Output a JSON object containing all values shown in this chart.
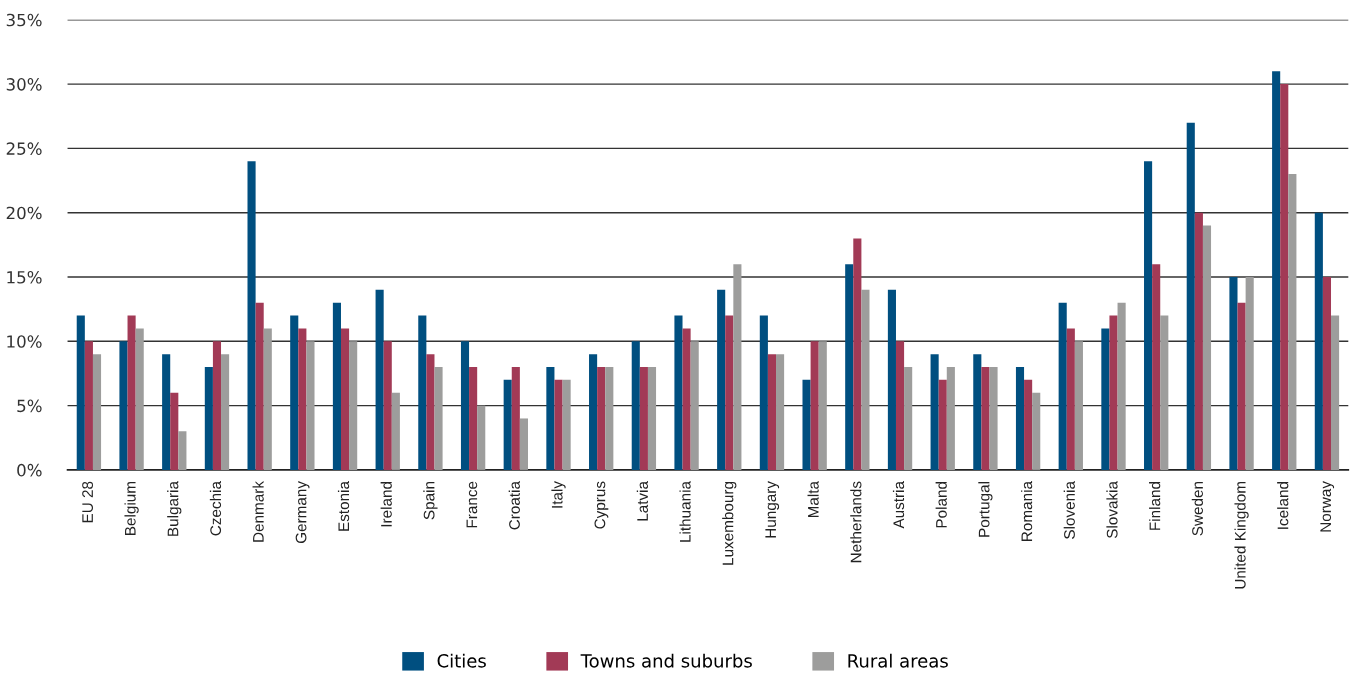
{
  "chart_data": {
    "type": "bar",
    "categories": [
      "EU 28",
      "Belgium",
      "Bulgaria",
      "Czechia",
      "Denmark",
      "Germany",
      "Estonia",
      "Ireland",
      "Spain",
      "France",
      "Croatia",
      "Italy",
      "Cyprus",
      "Latvia",
      "Lithuania",
      "Luxembourg",
      "Hungary",
      "Malta",
      "Netherlands",
      "Austria",
      "Poland",
      "Portugal",
      "Romania",
      "Slovenia",
      "Slovakia",
      "Finland",
      "Sweden",
      "United Kingdom",
      "Iceland",
      "Norway"
    ],
    "series": [
      {
        "name": "Cities",
        "color": "#004f80",
        "values": [
          12,
          10,
          9,
          8,
          24,
          12,
          13,
          14,
          12,
          10,
          7,
          8,
          9,
          10,
          12,
          14,
          12,
          7,
          16,
          14,
          9,
          9,
          8,
          13,
          11,
          24,
          27,
          15,
          31,
          20
        ]
      },
      {
        "name": "Towns and suburbs",
        "color": "#a23a56",
        "values": [
          10,
          12,
          6,
          10,
          13,
          11,
          11,
          10,
          9,
          8,
          8,
          7,
          8,
          8,
          11,
          12,
          9,
          10,
          18,
          10,
          7,
          8,
          7,
          11,
          12,
          16,
          20,
          13,
          30,
          15
        ]
      },
      {
        "name": "Rural areas",
        "color": "#9d9d9c",
        "values": [
          9,
          11,
          3,
          9,
          11,
          10,
          10,
          6,
          8,
          5,
          4,
          7,
          8,
          8,
          10,
          16,
          9,
          10,
          14,
          8,
          8,
          8,
          6,
          10,
          13,
          12,
          19,
          15,
          23,
          12
        ]
      }
    ],
    "ylim": [
      0,
      35
    ],
    "yticks": [
      {
        "value": 0,
        "label": "0%"
      },
      {
        "value": 5,
        "label": "5%"
      },
      {
        "value": 10,
        "label": "10%"
      },
      {
        "value": 15,
        "label": "15%"
      },
      {
        "value": 20,
        "label": "20%"
      },
      {
        "value": 25,
        "label": "25%"
      },
      {
        "value": 30,
        "label": "30%"
      },
      {
        "value": 35,
        "label": "35%"
      }
    ],
    "grid": "y",
    "legend": "bottom"
  }
}
